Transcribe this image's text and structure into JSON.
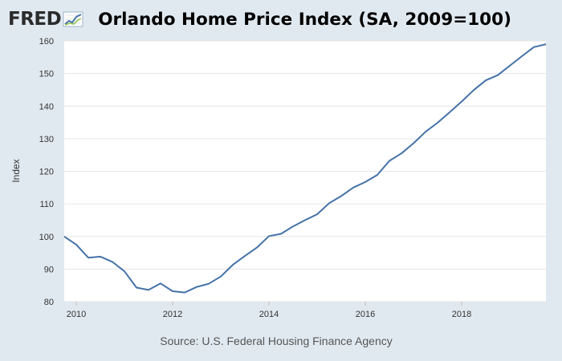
{
  "header": {
    "logo_text": "FRED",
    "logo_icon": "line-graph-icon",
    "title": "Orlando Home Price Index (SA, 2009=100)"
  },
  "source": "Source: U.S. Federal Housing Finance Agency",
  "colors": {
    "background": "#e1e9f0",
    "plot_background": "#ffffff",
    "line": "#4572a7",
    "grid": "#e6e6e6"
  },
  "chart_data": {
    "type": "line",
    "title": "Orlando Home Price Index (SA, 2009=100)",
    "xlabel": "",
    "ylabel": "Index",
    "xlim": [
      2009.75,
      2019.75
    ],
    "ylim": [
      80,
      160
    ],
    "x_ticks": [
      2010,
      2012,
      2014,
      2016,
      2018
    ],
    "y_ticks": [
      80,
      90,
      100,
      110,
      120,
      130,
      140,
      150,
      160
    ],
    "grid": true,
    "legend": "none",
    "series": [
      {
        "x": [
          2009.75,
          2010.0,
          2010.25,
          2010.5,
          2010.75,
          2011.0,
          2011.25,
          2011.5,
          2011.75,
          2012.0,
          2012.25,
          2012.5,
          2012.75,
          2013.0,
          2013.25,
          2013.5,
          2013.75,
          2014.0,
          2014.25,
          2014.5,
          2014.75,
          2015.0,
          2015.25,
          2015.5,
          2015.75,
          2016.0,
          2016.25,
          2016.5,
          2016.75,
          2017.0,
          2017.25,
          2017.5,
          2017.75,
          2018.0,
          2018.25,
          2018.5,
          2018.75,
          2019.0,
          2019.25,
          2019.5,
          2019.75
        ],
        "values": [
          100.0,
          97.5,
          93.5,
          93.8,
          92.2,
          89.3,
          84.3,
          83.6,
          85.6,
          83.2,
          82.8,
          84.5,
          85.5,
          87.7,
          91.3,
          94.0,
          96.6,
          100.1,
          100.8,
          103.1,
          105.0,
          106.8,
          110.2,
          112.4,
          115.0,
          116.7,
          118.9,
          123.2,
          125.5,
          128.6,
          132.1,
          134.9,
          138.1,
          141.4,
          144.9,
          147.9,
          149.5,
          152.4,
          155.3,
          158.1,
          159.0
        ]
      }
    ]
  }
}
